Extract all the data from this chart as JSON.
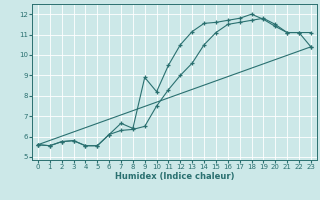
{
  "xlabel": "Humidex (Indice chaleur)",
  "background_color": "#cce8e8",
  "grid_color": "#ffffff",
  "line_color": "#2a7070",
  "xlim": [
    -0.5,
    23.5
  ],
  "ylim": [
    4.85,
    12.5
  ],
  "yticks": [
    5,
    6,
    7,
    8,
    9,
    10,
    11,
    12
  ],
  "xticks": [
    0,
    1,
    2,
    3,
    4,
    5,
    6,
    7,
    8,
    9,
    10,
    11,
    12,
    13,
    14,
    15,
    16,
    17,
    18,
    19,
    20,
    21,
    22,
    23
  ],
  "line1_x": [
    0,
    1,
    2,
    3,
    4,
    5,
    6,
    7,
    8,
    9,
    10,
    11,
    12,
    13,
    14,
    15,
    16,
    17,
    18,
    19,
    20,
    21,
    22,
    23
  ],
  "line1_y": [
    5.6,
    5.55,
    5.75,
    5.8,
    5.55,
    5.55,
    6.1,
    6.3,
    6.35,
    6.5,
    7.5,
    8.3,
    9.0,
    9.6,
    10.5,
    11.1,
    11.5,
    11.6,
    11.7,
    11.8,
    11.5,
    11.1,
    11.1,
    10.4
  ],
  "line2_x": [
    0,
    1,
    2,
    3,
    4,
    5,
    6,
    7,
    8,
    9,
    10,
    11,
    12,
    13,
    14,
    15,
    16,
    17,
    18,
    19,
    20,
    21,
    22,
    23
  ],
  "line2_y": [
    5.6,
    5.55,
    5.75,
    5.8,
    5.55,
    5.55,
    6.1,
    6.65,
    6.4,
    8.9,
    8.2,
    9.5,
    10.5,
    11.15,
    11.55,
    11.6,
    11.7,
    11.8,
    12.0,
    11.75,
    11.4,
    11.1,
    11.1,
    11.1
  ],
  "line3_x": [
    0,
    23
  ],
  "line3_y": [
    5.6,
    10.4
  ],
  "figsize": [
    3.2,
    2.0
  ],
  "dpi": 100
}
